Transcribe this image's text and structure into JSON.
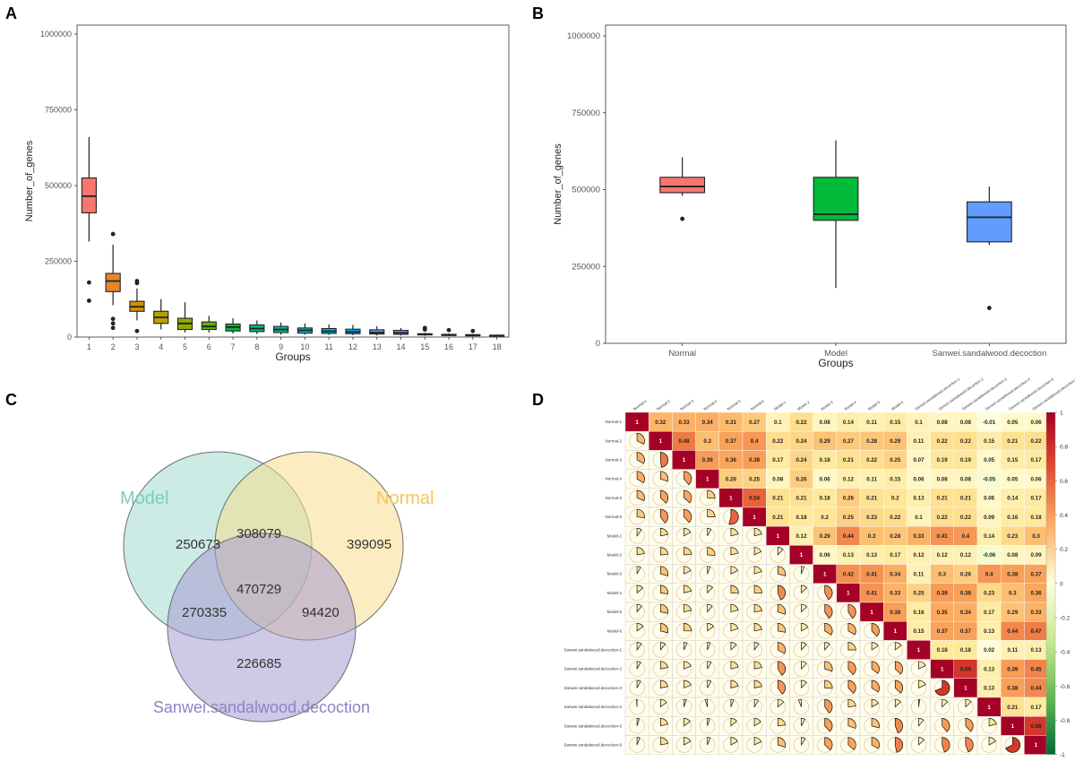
{
  "panels": {
    "a": "A",
    "b": "B",
    "c": "C",
    "d": "D"
  },
  "chart_data": [
    {
      "id": "A",
      "type": "boxplot",
      "xlabel": "Groups",
      "ylabel": "Number_of_genes",
      "ylim": [
        0,
        1000000
      ],
      "yticks": [
        0,
        250000,
        500000,
        750000,
        1000000
      ],
      "boxes": [
        {
          "label": "1",
          "color": "#F8766D",
          "min": 315000,
          "q1": 410000,
          "median": 465000,
          "q3": 525000,
          "max": 660000,
          "outliers": [
            180000,
            120000
          ]
        },
        {
          "label": "2",
          "color": "#E8852B",
          "min": 105000,
          "q1": 150000,
          "median": 185000,
          "q3": 210000,
          "max": 305000,
          "outliers": [
            340000,
            60000,
            45000,
            30000
          ]
        },
        {
          "label": "3",
          "color": "#D39200",
          "min": 55000,
          "q1": 85000,
          "median": 100000,
          "q3": 118000,
          "max": 160000,
          "outliers": [
            185000,
            178000,
            20000
          ]
        },
        {
          "label": "4",
          "color": "#B79F00",
          "min": 25000,
          "q1": 45000,
          "median": 65000,
          "q3": 85000,
          "max": 125000,
          "outliers": []
        },
        {
          "label": "5",
          "color": "#93AA00",
          "min": 15000,
          "q1": 25000,
          "median": 45000,
          "q3": 62000,
          "max": 115000,
          "outliers": []
        },
        {
          "label": "6",
          "color": "#5EB300",
          "min": 15000,
          "q1": 25000,
          "median": 35000,
          "q3": 50000,
          "max": 70000,
          "outliers": []
        },
        {
          "label": "7",
          "color": "#00BA38",
          "min": 12000,
          "q1": 20000,
          "median": 33000,
          "q3": 43000,
          "max": 62000,
          "outliers": []
        },
        {
          "label": "8",
          "color": "#00BF74",
          "min": 10000,
          "q1": 18000,
          "median": 28000,
          "q3": 40000,
          "max": 55000,
          "outliers": []
        },
        {
          "label": "9",
          "color": "#00C19F",
          "min": 8000,
          "q1": 15000,
          "median": 25000,
          "q3": 35000,
          "max": 48000,
          "outliers": []
        },
        {
          "label": "10",
          "color": "#00BFC4",
          "min": 8000,
          "q1": 13000,
          "median": 22000,
          "q3": 30000,
          "max": 45000,
          "outliers": []
        },
        {
          "label": "11",
          "color": "#00B9E3",
          "min": 7000,
          "q1": 12000,
          "median": 19000,
          "q3": 28000,
          "max": 42000,
          "outliers": []
        },
        {
          "label": "12",
          "color": "#00ADFA",
          "min": 6000,
          "q1": 11000,
          "median": 17000,
          "q3": 26000,
          "max": 40000,
          "outliers": []
        },
        {
          "label": "13",
          "color": "#619CFF",
          "min": 5000,
          "q1": 10000,
          "median": 15000,
          "q3": 24000,
          "max": 36000,
          "outliers": []
        },
        {
          "label": "14",
          "color": "#AE87FF",
          "min": 5000,
          "q1": 9000,
          "median": 14000,
          "q3": 22000,
          "max": 30000,
          "outliers": []
        },
        {
          "label": "15",
          "color": "#DB72FB",
          "min": 4000,
          "q1": 7000,
          "median": 9000,
          "q3": 11000,
          "max": 14000,
          "outliers": [
            30000,
            25000
          ]
        },
        {
          "label": "16",
          "color": "#F564E3",
          "min": 3000,
          "q1": 5000,
          "median": 7000,
          "q3": 9000,
          "max": 12000,
          "outliers": [
            23000
          ]
        },
        {
          "label": "17",
          "color": "#FF61C3",
          "min": 2000,
          "q1": 4000,
          "median": 6000,
          "q3": 8000,
          "max": 10000,
          "outliers": [
            20000
          ]
        },
        {
          "label": "18",
          "color": "#FF6C91",
          "min": 2000,
          "q1": 3000,
          "median": 5000,
          "q3": 6000,
          "max": 8000,
          "outliers": []
        }
      ]
    },
    {
      "id": "B",
      "type": "boxplot",
      "xlabel": "Groups",
      "ylabel": "Number_of_genes",
      "ylim": [
        0,
        1000000
      ],
      "yticks": [
        0,
        250000,
        500000,
        750000,
        1000000
      ],
      "boxes": [
        {
          "label": "Normal",
          "color": "#F8766D",
          "min": 480000,
          "q1": 490000,
          "median": 510000,
          "q3": 540000,
          "max": 605000,
          "outliers": [
            405000
          ]
        },
        {
          "label": "Model",
          "color": "#00BA38",
          "min": 180000,
          "q1": 400000,
          "median": 420000,
          "q3": 540000,
          "max": 660000,
          "outliers": []
        },
        {
          "label": "Sanwei.sandalwood.decoction",
          "color": "#619CFF",
          "min": 320000,
          "q1": 330000,
          "median": 410000,
          "q3": 460000,
          "max": 510000,
          "outliers": [
            115000
          ]
        }
      ]
    },
    {
      "id": "C",
      "type": "venn",
      "sets": [
        {
          "name": "Model",
          "color": "#A8DDD2",
          "label_color": "#7FCCBE"
        },
        {
          "name": "Normal",
          "color": "#F8DE8E",
          "label_color": "#F2C65A"
        },
        {
          "name": "Sanwei.sandalwood.decoction",
          "color": "#A89BD2",
          "label_color": "#8E82C4"
        }
      ],
      "regions": {
        "model_only": "250673",
        "normal_only": "399095",
        "sanwei_only": "226685",
        "model_normal": "308079",
        "model_sanwei": "270335",
        "normal_sanwei": "94420",
        "all": "470729"
      }
    },
    {
      "id": "D",
      "type": "correlation_matrix",
      "labels": [
        "Normal-1",
        "Normal-2",
        "Normal-3",
        "Normal-4",
        "Normal-5",
        "Normal-6",
        "Model-1",
        "Model-2",
        "Model-3",
        "Model-4",
        "Model-5",
        "Model-6",
        "Sanwei.sandalwood.decoction-1",
        "Sanwei.sandalwood.decoction-2",
        "Sanwei.sandalwood.decoction-3",
        "Sanwei.sandalwood.decoction-4",
        "Sanwei.sandalwood.decoction-5",
        "Sanwei.sandalwood.decoction-6"
      ],
      "upper": [
        [
          0.32,
          0.33,
          0.34,
          0.31,
          0.27,
          0.1,
          0.22,
          0.08,
          0.14,
          0.11,
          0.15,
          0.1,
          0.08,
          0.08,
          -0.01,
          0.05,
          0.06
        ],
        [
          0.48,
          0.3,
          0.37,
          0.4,
          0.22,
          0.24,
          0.29,
          0.27,
          0.28,
          0.29,
          0.11,
          0.22,
          0.22,
          0.15,
          0.21,
          0.22
        ],
        [
          0.39,
          0.36,
          0.38,
          0.17,
          0.24,
          0.18,
          0.21,
          0.22,
          0.25,
          0.07,
          0.19,
          0.19,
          0.05,
          0.15,
          0.17
        ],
        [
          0.26,
          0.25,
          0.08,
          0.26,
          0.06,
          0.12,
          0.11,
          0.15,
          0.06,
          0.08,
          0.08,
          -0.05,
          0.05,
          0.06
        ],
        [
          0.54,
          0.21,
          0.21,
          0.18,
          0.26,
          0.21,
          0.2,
          0.13,
          0.21,
          0.21,
          0.06,
          0.14,
          0.17
        ],
        [
          0.21,
          0.18,
          0.2,
          0.25,
          0.23,
          0.22,
          0.1,
          0.22,
          0.22,
          0.09,
          0.16,
          0.18
        ],
        [
          0.12,
          0.29,
          0.44,
          0.3,
          0.28,
          0.33,
          0.41,
          0.4,
          0.14,
          0.23,
          0.3
        ],
        [
          0.06,
          0.13,
          0.13,
          0.17,
          0.12,
          0.12,
          0.12,
          -0.06,
          0.08,
          0.09
        ],
        [
          0.42,
          0.41,
          0.34,
          0.11,
          0.3,
          0.26,
          0.4,
          0.38,
          0.37
        ],
        [
          0.41,
          0.33,
          0.25,
          0.39,
          0.38,
          0.23,
          0.3,
          0.36
        ],
        [
          0.38,
          0.16,
          0.35,
          0.34,
          0.17,
          0.29,
          0.33
        ],
        [
          0.15,
          0.37,
          0.37,
          0.13,
          0.44,
          0.47
        ],
        [
          0.18,
          0.18,
          0.02,
          0.11,
          0.13
        ],
        [
          0.69,
          0.13,
          0.39,
          0.45
        ],
        [
          0.13,
          0.38,
          0.44
        ],
        [
          0.21,
          0.17
        ],
        [
          0.68
        ],
        []
      ],
      "diagonal": "1",
      "colorbar_ticks": [
        "1",
        "0.8",
        "0.6",
        "0.4",
        "0.2",
        "0",
        "-0.2",
        "-0.4",
        "-0.6",
        "-0.8",
        "-1"
      ]
    }
  ]
}
